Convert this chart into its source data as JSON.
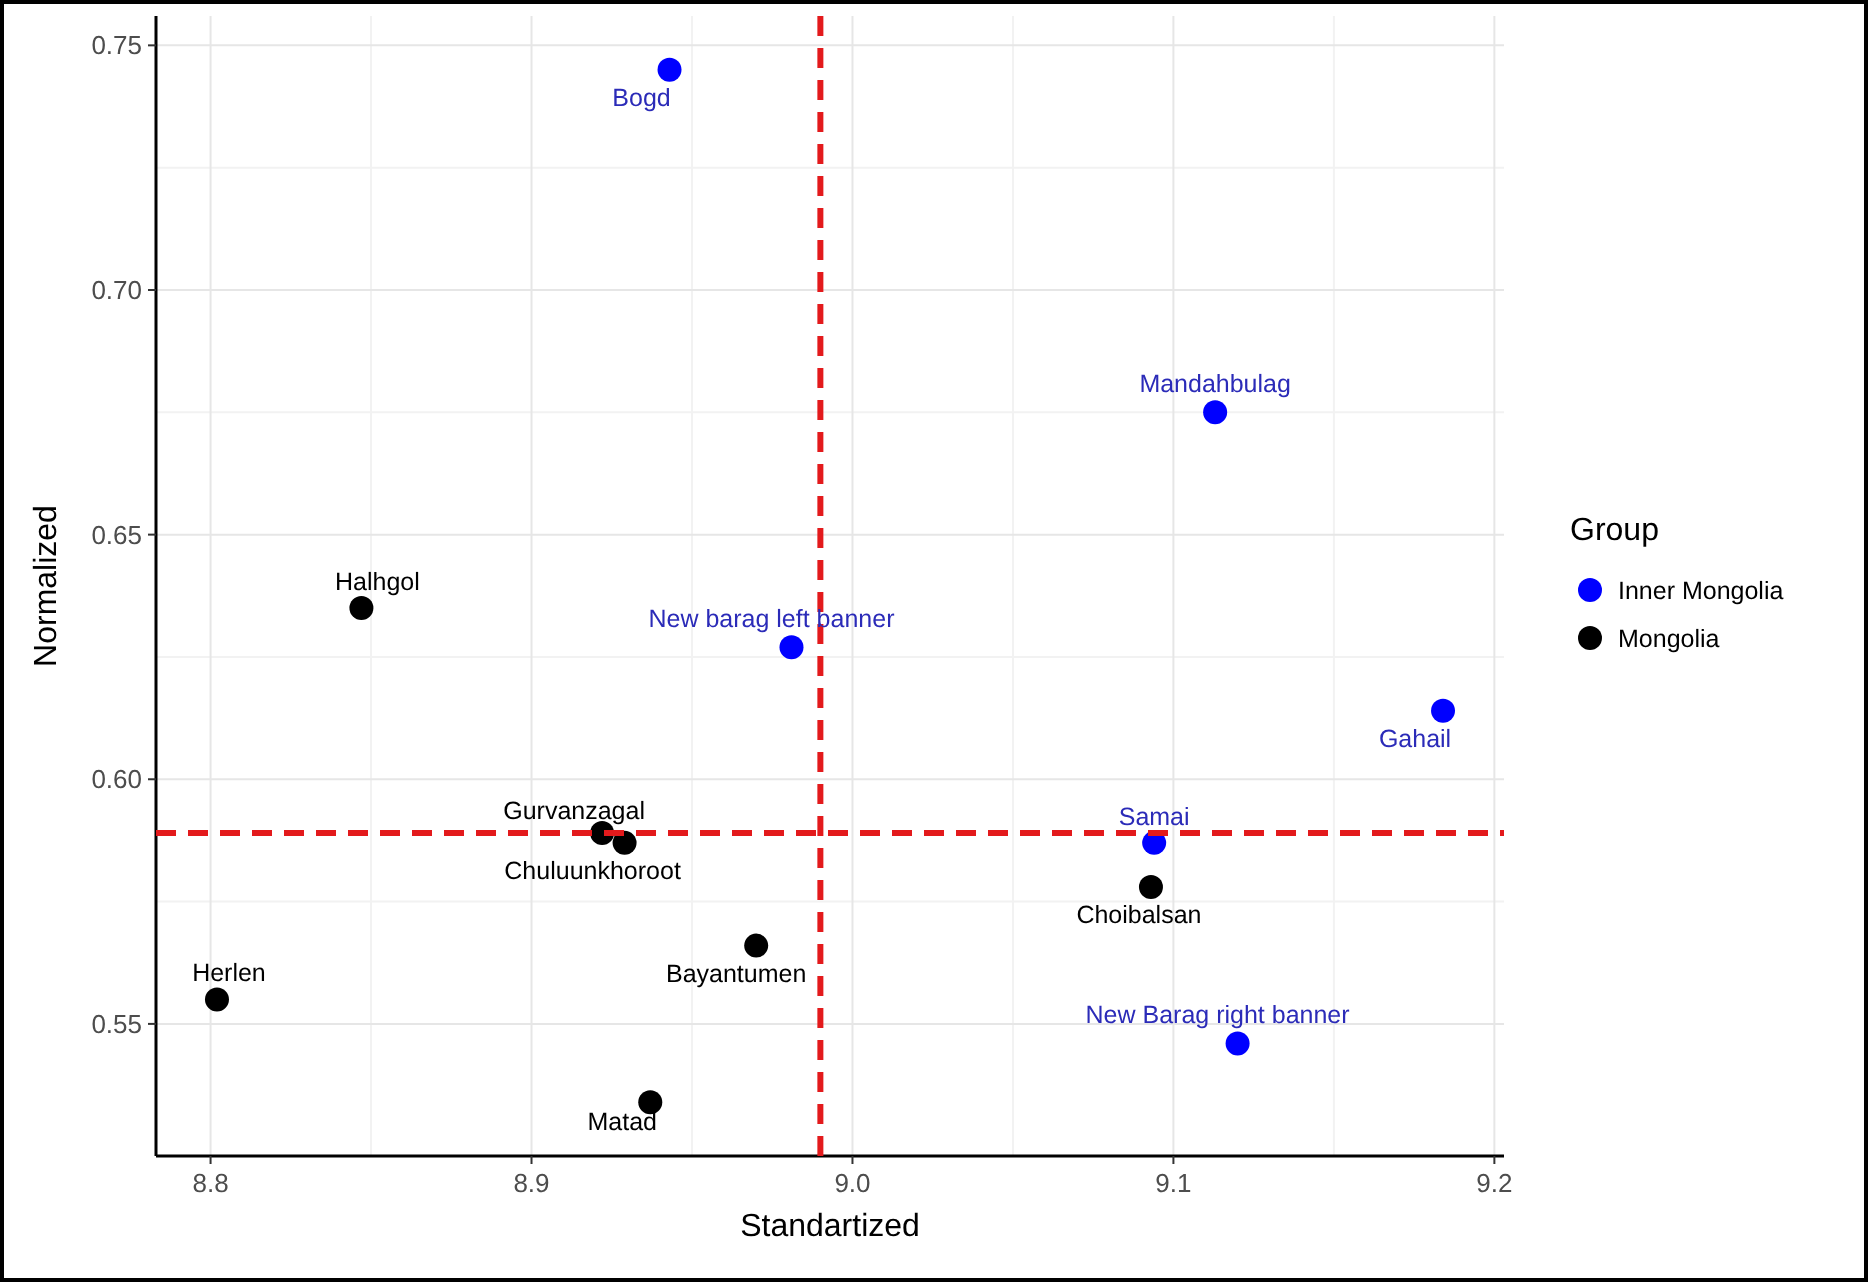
{
  "chart_data": {
    "type": "scatter",
    "xlabel": "Standartized",
    "ylabel": "Normalized",
    "legend_title": "Group",
    "legend": "right",
    "grid": true,
    "marker": "circle",
    "xlim": [
      8.783,
      9.203
    ],
    "xticks": [
      {
        "value": 8.8,
        "label": "8.8"
      },
      {
        "value": 8.9,
        "label": "8.9"
      },
      {
        "value": 9.0,
        "label": "9.0"
      },
      {
        "value": 9.1,
        "label": "9.1"
      },
      {
        "value": 9.2,
        "label": "9.2"
      }
    ],
    "ylim": [
      0.523,
      0.756
    ],
    "yticks": [
      {
        "value": 0.55,
        "label": "0.55"
      },
      {
        "value": 0.6,
        "label": "0.60"
      },
      {
        "value": 0.65,
        "label": "0.65"
      },
      {
        "value": 0.7,
        "label": "0.70"
      },
      {
        "value": 0.75,
        "label": "0.75"
      }
    ],
    "series": [
      {
        "name": "Inner Mongolia",
        "color": "#0000ff",
        "x": [
          8.943,
          9.113,
          8.981,
          9.184,
          9.094,
          9.12
        ],
        "values": [
          0.745,
          0.675,
          0.627,
          0.614,
          0.587,
          0.546
        ]
      },
      {
        "name": "Mongolia",
        "color": "#000000",
        "x": [
          8.847,
          8.922,
          8.929,
          9.093,
          8.97,
          8.802,
          8.937
        ],
        "values": [
          0.635,
          0.589,
          0.587,
          0.578,
          0.566,
          0.555,
          0.534
        ]
      }
    ],
    "ref_lines": [
      {
        "axis": "x",
        "value": 8.99,
        "color": "#e31a1c",
        "line_style": "dashed"
      },
      {
        "axis": "y",
        "value": 0.589,
        "color": "#e31a1c",
        "line_style": "dashed"
      }
    ],
    "annotations": [
      {
        "text": "Bogd",
        "x": 8.943,
        "y": 0.745
      },
      {
        "text": "Mandahbulag",
        "x": 9.113,
        "y": 0.675
      },
      {
        "text": "New barag left banner",
        "x": 8.981,
        "y": 0.627
      },
      {
        "text": "Gahail",
        "x": 9.184,
        "y": 0.614
      },
      {
        "text": "Samai",
        "x": 9.094,
        "y": 0.587
      },
      {
        "text": "New Barag right banner",
        "x": 9.12,
        "y": 0.546
      },
      {
        "text": "Halhgol",
        "x": 8.847,
        "y": 0.635
      },
      {
        "text": "Gurvanzagal",
        "x": 8.922,
        "y": 0.589
      },
      {
        "text": "Chuluunkhoroot",
        "x": 8.929,
        "y": 0.587
      },
      {
        "text": "Choibalsan",
        "x": 9.093,
        "y": 0.578
      },
      {
        "text": "Bayantumen",
        "x": 8.97,
        "y": 0.566
      },
      {
        "text": "Herlen",
        "x": 8.802,
        "y": 0.555
      },
      {
        "text": "Matad",
        "x": 8.937,
        "y": 0.534
      }
    ]
  }
}
